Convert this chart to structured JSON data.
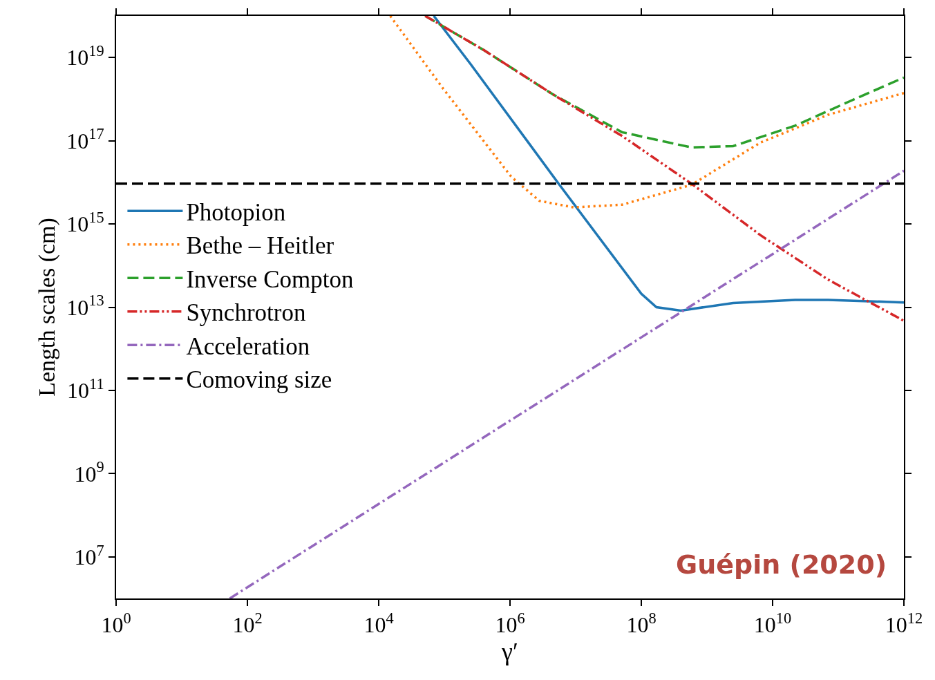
{
  "chart_data": {
    "type": "line",
    "xlabel": "γ′",
    "ylabel": "Length scales (cm)",
    "log": "xy",
    "legend": "top left",
    "marker": "none",
    "xlim": [
      1,
      1000000000000.0
    ],
    "ylim": [
      1000000.0,
      1e+20
    ],
    "xticks": [
      {
        "value": 1,
        "label": "10$^{0}$"
      },
      {
        "value": 100,
        "label": "10$^{2}$"
      },
      {
        "value": 10000.0,
        "label": "10$^{4}$"
      },
      {
        "value": 1000000.0,
        "label": "10$^{6}$"
      },
      {
        "value": 100000000.0,
        "label": "10$^{8}$"
      },
      {
        "value": 10000000000.0,
        "label": "10$^{10}$"
      },
      {
        "value": 1000000000000.0,
        "label": "10$^{12}$"
      }
    ],
    "yticks": [
      {
        "value": 10000000.0,
        "label": "10$^{7}$"
      },
      {
        "value": 1000000000.0,
        "label": "10$^{9}$"
      },
      {
        "value": 100000000000.0,
        "label": "10$^{11}$"
      },
      {
        "value": 10000000000000.0,
        "label": "10$^{13}$"
      },
      {
        "value": 1000000000000000.0,
        "label": "10$^{15}$"
      },
      {
        "value": 1e+17,
        "label": "10$^{17}$"
      },
      {
        "value": 1e+19,
        "label": "10$^{19}$"
      }
    ],
    "series": [
      {
        "name": "Photopion",
        "color": "#1f77b4",
        "line_style": "solid",
        "x": [
          69000.0,
          250000.0,
          5500000.0,
          100000000.0,
          170000000.0,
          400000000.0,
          2500000000.0,
          22000000000.0,
          70000000000.0,
          1000000000000.0
        ],
        "values": [
          1e+20,
          7e+18,
          9300000000000000.0,
          21000000000000.0,
          10000000000000.0,
          8300000000000.0,
          12600000000000.0,
          15000000000000.0,
          15000000000000.0,
          13000000000000.0
        ]
      },
      {
        "name": "Bethe – Heitler",
        "color": "#ff7f0e",
        "line_style": "dotted",
        "x": [
          15000.0,
          93000.0,
          1050000.0,
          2800000.0,
          9300000.0,
          51000000.0,
          580000000.0,
          6500000000.0,
          70000000000.0,
          1000000000000.0
        ],
        "values": [
          1e+20,
          1.9e+18,
          1.35e+16,
          3600000000000000.0,
          2500000000000000.0,
          2900000000000000.0,
          8700000000000000.0,
          9e+16,
          4.2e+17,
          1.4e+18
        ]
      },
      {
        "name": "Inverse Compton",
        "color": "#2ca02c",
        "line_style": "dashed",
        "x": [
          51000.0,
          400000.0,
          4500000.0,
          51000000.0,
          580000000.0,
          2500000000.0,
          22000000000.0,
          150000000000.0,
          1000000000000.0
        ],
        "values": [
          1e+20,
          1.5e+19,
          1.3e+18,
          1.6e+17,
          6.9e+16,
          7.4e+16,
          2.3e+17,
          8.9e+17,
          3.3e+18
        ]
      },
      {
        "name": "Synchrotron",
        "color": "#d62728",
        "line_style": "dashdotdot",
        "x": [
          51000.0,
          400000.0,
          4500000.0,
          51000000.0,
          580000000.0,
          6500000000.0,
          70000000000.0,
          1000000000000.0
        ],
        "values": [
          1e+20,
          1.5e+19,
          1.3e+18,
          1.3e+17,
          9300000000000000.0,
          540000000000000.0,
          46000000000000.0,
          4700000000000.0
        ]
      },
      {
        "name": "Acceleration",
        "color": "#9467bd",
        "line_style": "dashdot",
        "x": [
          54,
          1000000000000.0
        ],
        "values": [
          1000000.0,
          1.9e+16
        ]
      },
      {
        "name": "Comoving size",
        "color": "#000000",
        "line_style": "dashed",
        "x": [
          1,
          1000000000000.0
        ],
        "values": [
          9300000000000000.0,
          9300000000000000.0
        ]
      }
    ],
    "annotations": [
      "Guépin (2020)"
    ]
  }
}
